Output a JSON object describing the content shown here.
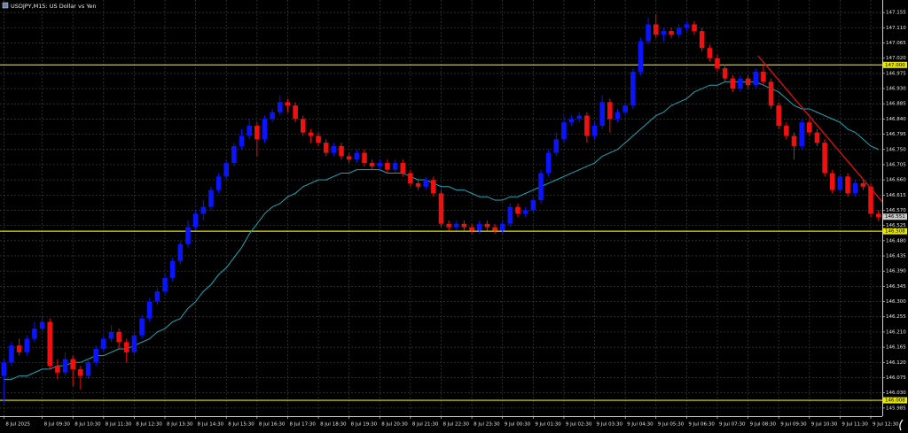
{
  "chart_data": {
    "type": "candlestick",
    "title": "USDJPY,M15:  US Dollar vs Yen",
    "up_color": "#0a14ff",
    "down_color": "#f01010",
    "grid": true,
    "ylim": [
      145.961,
      147.192
    ],
    "yticks": [
      147.155,
      {
        "value": 147.11,
        "label": "147.110"
      },
      147.065,
      {
        "value": 147.02,
        "label": "147.020"
      },
      146.975,
      {
        "value": 146.93,
        "label": "146.930"
      },
      146.885,
      {
        "value": 146.84,
        "label": "146.840"
      },
      146.795,
      {
        "value": 146.75,
        "label": "146.750"
      },
      146.705,
      {
        "value": 146.66,
        "label": "146.660"
      },
      146.615,
      {
        "value": 146.57,
        "label": "146.570"
      },
      146.525,
      {
        "value": 146.48,
        "label": "146.480"
      },
      146.435,
      {
        "value": 146.39,
        "label": "146.390"
      },
      146.345,
      {
        "value": 146.3,
        "label": "146.300"
      },
      146.255,
      {
        "value": 146.21,
        "label": "146.210"
      },
      146.165,
      {
        "value": 146.12,
        "label": "146.120"
      },
      146.075,
      {
        "value": 146.03,
        "label": "146.030"
      },
      145.985
    ],
    "categories": [
      "8 Jul 2025",
      null,
      null,
      null,
      null,
      "8 Jul 09:30",
      null,
      null,
      null,
      "8 Jul 10:30",
      null,
      null,
      null,
      "8 Jul 11:30",
      null,
      null,
      null,
      "8 Jul 12:30",
      null,
      null,
      null,
      "8 Jul 13:30",
      null,
      null,
      null,
      "8 Jul 14:30",
      null,
      null,
      null,
      "8 Jul 15:30",
      null,
      null,
      null,
      "8 Jul 16:30",
      null,
      null,
      null,
      "8 Jul 17:30",
      null,
      null,
      null,
      "8 Jul 18:30",
      null,
      null,
      null,
      "8 Jul 19:30",
      null,
      null,
      null,
      "8 Jul 20:30",
      null,
      null,
      null,
      "8 Jul 21:30",
      null,
      null,
      null,
      "8 Jul 22:30",
      null,
      null,
      null,
      "8 Jul 23:30",
      null,
      null,
      null,
      "9 Jul 00:30",
      null,
      null,
      null,
      "9 Jul 01:30",
      null,
      null,
      null,
      "9 Jul 02:30",
      null,
      null,
      null,
      "9 Jul 03:30",
      null,
      null,
      null,
      "9 Jul 04:30",
      null,
      null,
      null,
      "9 Jul 05:30",
      null,
      null,
      null,
      "9 Jul 06:30",
      null,
      null,
      null,
      "9 Jul 07:30",
      null,
      null,
      null,
      "9 Jul 08:30",
      null,
      null,
      null,
      "9 Jul 09:30",
      null,
      null,
      null,
      "9 Jul 10:30",
      null,
      null,
      null,
      "9 Jul 11:30",
      null,
      null,
      null,
      "9 Jul 12:30",
      null
    ],
    "open": [
      146.08,
      146.12,
      146.17,
      146.15,
      146.19,
      146.22,
      146.24,
      146.11,
      146.09,
      146.13,
      146.1,
      146.08,
      146.12,
      146.16,
      146.19,
      146.21,
      146.18,
      146.15,
      146.2,
      146.25,
      146.3,
      146.33,
      146.37,
      146.42,
      146.47,
      146.52,
      146.56,
      146.58,
      146.63,
      146.67,
      146.71,
      146.76,
      146.79,
      146.82,
      146.78,
      146.84,
      146.86,
      146.89,
      146.88,
      146.84,
      146.8,
      146.79,
      146.77,
      146.74,
      146.76,
      146.73,
      146.72,
      146.74,
      146.71,
      146.7,
      146.71,
      146.69,
      146.71,
      146.68,
      146.65,
      146.64,
      146.66,
      146.62,
      146.53,
      146.52,
      146.53,
      146.52,
      146.51,
      146.53,
      146.52,
      146.51,
      146.53,
      146.58,
      146.56,
      146.57,
      146.6,
      146.68,
      146.74,
      146.78,
      146.83,
      146.84,
      146.85,
      146.79,
      146.82,
      146.89,
      146.84,
      146.86,
      146.88,
      146.98,
      147.07,
      147.12,
      147.09,
      147.1,
      147.09,
      147.11,
      147.12,
      147.1,
      147.05,
      147.02,
      146.99,
      146.96,
      146.93,
      146.96,
      146.94,
      146.98,
      146.95,
      146.88,
      146.82,
      146.79,
      146.76,
      146.83,
      146.8,
      146.77,
      146.68,
      146.63,
      146.67,
      146.62,
      146.65,
      146.64,
      146.56
    ],
    "high": [
      146.13,
      146.18,
      146.19,
      146.2,
      146.24,
      146.26,
      146.25,
      146.13,
      146.15,
      146.14,
      146.11,
      146.13,
      146.17,
      146.2,
      146.23,
      146.22,
      146.19,
      146.21,
      146.26,
      146.31,
      146.34,
      146.38,
      146.43,
      146.48,
      146.54,
      146.57,
      146.6,
      146.64,
      146.68,
      146.72,
      146.77,
      146.81,
      146.84,
      146.83,
      146.85,
      146.87,
      146.91,
      146.9,
      146.89,
      146.85,
      146.81,
      146.8,
      146.78,
      146.77,
      146.77,
      146.74,
      146.75,
      146.75,
      146.72,
      146.72,
      146.72,
      146.72,
      146.72,
      146.69,
      146.66,
      146.67,
      146.67,
      146.63,
      146.54,
      146.54,
      146.54,
      146.53,
      146.54,
      146.54,
      146.53,
      146.54,
      146.59,
      146.59,
      146.58,
      146.61,
      146.69,
      146.75,
      146.8,
      146.85,
      146.85,
      146.86,
      146.86,
      146.83,
      146.91,
      146.9,
      146.87,
      146.89,
      146.99,
      147.08,
      147.14,
      147.15,
      147.11,
      147.11,
      147.12,
      147.13,
      147.13,
      147.11,
      147.06,
      147.03,
      147.0,
      146.97,
      146.97,
      146.97,
      146.99,
      147.0,
      146.96,
      146.89,
      146.83,
      146.8,
      146.84,
      146.84,
      146.81,
      146.78,
      146.69,
      146.68,
      146.68,
      146.66,
      146.66,
      146.65,
      146.57
    ],
    "low": [
      146.0,
      146.11,
      146.14,
      146.14,
      146.18,
      146.21,
      146.1,
      146.07,
      146.08,
      146.05,
      146.04,
      146.07,
      146.11,
      146.15,
      146.18,
      146.16,
      146.12,
      146.14,
      146.19,
      146.24,
      146.29,
      146.32,
      146.36,
      146.41,
      146.46,
      146.51,
      146.54,
      146.57,
      146.62,
      146.66,
      146.7,
      146.75,
      146.78,
      146.73,
      146.77,
      146.83,
      146.85,
      146.86,
      146.83,
      146.79,
      146.77,
      146.76,
      146.73,
      146.73,
      146.72,
      146.71,
      146.71,
      146.7,
      146.69,
      146.69,
      146.68,
      146.68,
      146.67,
      146.64,
      146.63,
      146.63,
      146.61,
      146.52,
      146.51,
      146.51,
      146.51,
      146.5,
      146.5,
      146.51,
      146.5,
      146.5,
      146.52,
      146.55,
      146.55,
      146.56,
      146.59,
      146.67,
      146.73,
      146.77,
      146.82,
      146.83,
      146.77,
      146.78,
      146.81,
      146.8,
      146.83,
      146.85,
      146.87,
      146.97,
      147.06,
      147.08,
      147.07,
      147.08,
      147.08,
      147.1,
      147.09,
      147.04,
      147.01,
      146.98,
      146.95,
      146.92,
      146.92,
      146.93,
      146.93,
      146.94,
      146.87,
      146.81,
      146.78,
      146.72,
      146.75,
      146.79,
      146.76,
      146.67,
      146.62,
      146.62,
      146.61,
      146.61,
      146.63,
      146.55,
      146.54
    ],
    "close": [
      146.12,
      146.17,
      146.15,
      146.19,
      146.22,
      146.24,
      146.11,
      146.09,
      146.13,
      146.1,
      146.08,
      146.12,
      146.16,
      146.19,
      146.21,
      146.18,
      146.15,
      146.2,
      146.25,
      146.3,
      146.33,
      146.37,
      146.42,
      146.47,
      146.52,
      146.56,
      146.58,
      146.63,
      146.67,
      146.71,
      146.76,
      146.79,
      146.82,
      146.78,
      146.84,
      146.86,
      146.89,
      146.88,
      146.84,
      146.8,
      146.79,
      146.77,
      146.74,
      146.76,
      146.73,
      146.72,
      146.74,
      146.71,
      146.7,
      146.71,
      146.69,
      146.71,
      146.68,
      146.65,
      146.64,
      146.66,
      146.62,
      146.53,
      146.52,
      146.53,
      146.52,
      146.51,
      146.53,
      146.52,
      146.51,
      146.53,
      146.58,
      146.56,
      146.57,
      146.6,
      146.68,
      146.74,
      146.78,
      146.83,
      146.84,
      146.85,
      146.79,
      146.82,
      146.89,
      146.84,
      146.86,
      146.88,
      146.98,
      147.07,
      147.12,
      147.09,
      147.1,
      147.09,
      147.11,
      147.12,
      147.1,
      147.05,
      147.02,
      146.99,
      146.96,
      146.93,
      146.96,
      146.94,
      146.98,
      146.95,
      146.88,
      146.82,
      146.79,
      146.76,
      146.83,
      146.8,
      146.77,
      146.68,
      146.63,
      146.67,
      146.62,
      146.65,
      146.64,
      146.56,
      146.55
    ],
    "ma": {
      "color": "#1fa6b4",
      "values": [
        146.07,
        146.07,
        146.08,
        146.08,
        146.09,
        146.1,
        146.1,
        146.11,
        146.11,
        146.12,
        146.12,
        146.13,
        146.14,
        146.14,
        146.15,
        146.16,
        146.16,
        146.17,
        146.18,
        146.19,
        146.21,
        146.22,
        146.24,
        146.25,
        146.28,
        146.3,
        146.33,
        146.35,
        146.38,
        146.4,
        146.43,
        146.46,
        146.5,
        146.53,
        146.56,
        146.58,
        146.59,
        146.61,
        146.62,
        146.64,
        146.65,
        146.66,
        146.66,
        146.67,
        146.68,
        146.68,
        146.69,
        146.69,
        146.69,
        146.69,
        146.68,
        146.68,
        146.68,
        146.67,
        146.66,
        146.66,
        146.65,
        146.64,
        146.64,
        146.63,
        146.63,
        146.62,
        146.61,
        146.61,
        146.6,
        146.6,
        146.61,
        146.61,
        146.62,
        146.63,
        146.64,
        146.65,
        146.66,
        146.67,
        146.68,
        146.69,
        146.7,
        146.71,
        146.73,
        146.74,
        146.75,
        146.77,
        146.79,
        146.81,
        146.83,
        146.85,
        146.86,
        146.88,
        146.89,
        146.9,
        146.92,
        146.93,
        146.94,
        146.94,
        146.95,
        146.95,
        146.95,
        146.95,
        146.95,
        146.94,
        146.93,
        146.92,
        146.9,
        146.88,
        146.87,
        146.87,
        146.86,
        146.85,
        146.84,
        146.83,
        146.81,
        146.8,
        146.78,
        146.76,
        146.75
      ]
    },
    "hlines": [
      {
        "value": 147.0,
        "label": "147.000"
      },
      {
        "value": 146.508,
        "label": "146.508"
      },
      {
        "value": 146.008,
        "label": "146.008"
      }
    ],
    "hline_color": "#e6e600",
    "last_price": {
      "value": 146.551,
      "label": "146.551"
    },
    "trend_line": {
      "color": "#e01010",
      "x": [
        98.3,
        114.5
      ],
      "y": [
        147.027,
        146.595
      ]
    }
  }
}
